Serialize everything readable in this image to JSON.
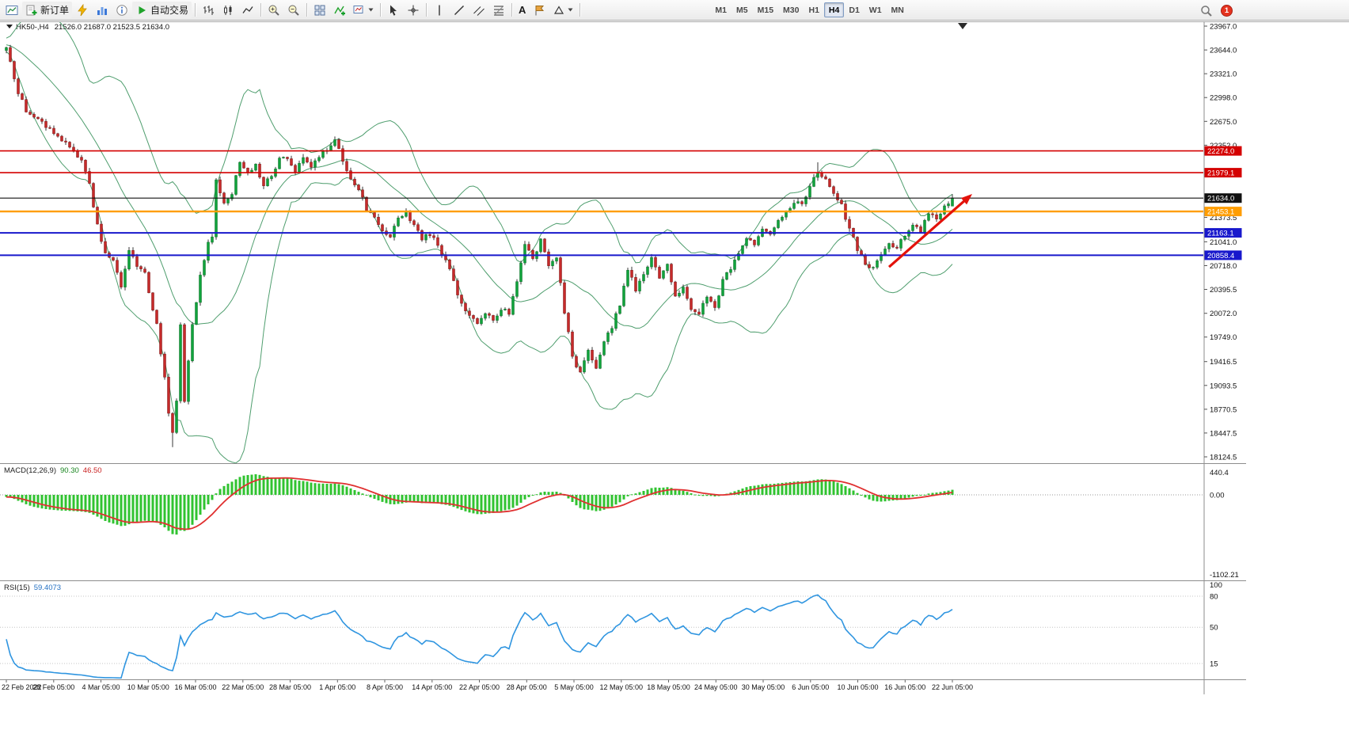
{
  "toolbar": {
    "new_order_label": "新订单",
    "autotrading_label": "自动交易",
    "text_tool_label": "A",
    "timeframes": [
      "M1",
      "M5",
      "M15",
      "M30",
      "H1",
      "H4",
      "D1",
      "W1",
      "MN"
    ],
    "active_timeframe": "H4",
    "notification_count": "1"
  },
  "chart": {
    "symbol_period": "HK50-,H4",
    "ohlc_text": "21526.0 21687.0 21523.5 21634.0",
    "open": 21526.0,
    "high": 21687.0,
    "low": 21523.5,
    "close": 21634.0
  },
  "price_axis": {
    "ticks": [
      "23967.0",
      "23644.0",
      "23321.0",
      "22998.0",
      "22675.0",
      "22352.0",
      "21373.5",
      "21041.0",
      "20718.0",
      "20395.5",
      "20072.0",
      "19749.0",
      "19416.5",
      "19093.5",
      "18770.5",
      "18447.5",
      "18124.5"
    ],
    "badges": [
      {
        "label": "22274.0",
        "price": 22274.0,
        "color": "#d40000",
        "line_width": 1.6
      },
      {
        "label": "21979.1",
        "price": 21979.1,
        "color": "#d40000",
        "line_width": 1.6
      },
      {
        "label": "21634.0",
        "price": 21634.0,
        "color": "#111111",
        "line_width": 1.2
      },
      {
        "label": "21453.1",
        "price": 21453.1,
        "color": "#ff9d00",
        "line_width": 2.4
      },
      {
        "label": "21163.1",
        "price": 21163.1,
        "color": "#1818cc",
        "line_width": 2
      },
      {
        "label": "20858.4",
        "price": 20858.4,
        "color": "#1818cc",
        "line_width": 2
      }
    ]
  },
  "indicators": {
    "macd": {
      "label": "MACD(12,26,9)",
      "value": "90.30",
      "signal": "46.50",
      "axis_labels": [
        "440.4",
        "0.00",
        "-1102.21"
      ]
    },
    "rsi": {
      "label": "RSI(15)",
      "value": "59.4073",
      "axis_labels": [
        "100",
        "80",
        "50",
        "15"
      ],
      "level_values": [
        80,
        50,
        15
      ]
    }
  },
  "time_axis": {
    "labels": [
      "22 Feb 2022",
      "28 Feb 05:00",
      "4 Mar 05:00",
      "10 Mar 05:00",
      "16 Mar 05:00",
      "22 Mar 05:00",
      "28 Mar 05:00",
      "1 Apr 05:00",
      "8 Apr 05:00",
      "14 Apr 05:00",
      "22 Apr 05:00",
      "28 Apr 05:00",
      "5 May 05:00",
      "12 May 05:00",
      "18 May 05:00",
      "24 May 05:00",
      "30 May 05:00",
      "6 Jun 05:00",
      "10 Jun 05:00",
      "16 Jun 05:00",
      "22 Jun 05:00"
    ]
  },
  "chart_data": {
    "type": "candlestick",
    "symbol": "HK50",
    "timeframe": "H4",
    "bars_total": 240,
    "last_close": 21634.0,
    "price_range": {
      "top": 23967.0,
      "bottom": 18124.5
    },
    "overlays": [
      "BollingerBands(20,2)"
    ],
    "close_anchors": [
      [
        0,
        23650
      ],
      [
        3,
        23080
      ],
      [
        5,
        22800
      ],
      [
        8,
        22700
      ],
      [
        10,
        22600
      ],
      [
        13,
        22500
      ],
      [
        16,
        22330
      ],
      [
        19,
        22150
      ],
      [
        21,
        21830
      ],
      [
        23,
        21250
      ],
      [
        25,
        20900
      ],
      [
        27,
        20800
      ],
      [
        29,
        20400
      ],
      [
        31,
        20950
      ],
      [
        33,
        20700
      ],
      [
        35,
        20600
      ],
      [
        38,
        19900
      ],
      [
        40,
        19200
      ],
      [
        41,
        18700
      ],
      [
        42,
        18450
      ],
      [
        43,
        18900
      ],
      [
        44,
        19950
      ],
      [
        45,
        18900
      ],
      [
        46,
        19400
      ],
      [
        47,
        19900
      ],
      [
        49,
        20600
      ],
      [
        51,
        21050
      ],
      [
        52,
        21100
      ],
      [
        53,
        21870
      ],
      [
        55,
        21550
      ],
      [
        57,
        21700
      ],
      [
        59,
        22150
      ],
      [
        61,
        21950
      ],
      [
        63,
        22100
      ],
      [
        65,
        21800
      ],
      [
        67,
        21950
      ],
      [
        69,
        22150
      ],
      [
        71,
        22200
      ],
      [
        73,
        22000
      ],
      [
        75,
        22150
      ],
      [
        77,
        22050
      ],
      [
        79,
        22200
      ],
      [
        81,
        22300
      ],
      [
        83,
        22420
      ],
      [
        85,
        22150
      ],
      [
        87,
        21900
      ],
      [
        89,
        21750
      ],
      [
        91,
        21500
      ],
      [
        93,
        21400
      ],
      [
        95,
        21200
      ],
      [
        97,
        21100
      ],
      [
        99,
        21350
      ],
      [
        101,
        21450
      ],
      [
        103,
        21250
      ],
      [
        105,
        21100
      ],
      [
        107,
        21150
      ],
      [
        109,
        21000
      ],
      [
        111,
        20800
      ],
      [
        113,
        20500
      ],
      [
        115,
        20200
      ],
      [
        117,
        20050
      ],
      [
        119,
        19900
      ],
      [
        121,
        20100
      ],
      [
        123,
        19950
      ],
      [
        125,
        20150
      ],
      [
        127,
        20050
      ],
      [
        129,
        20500
      ],
      [
        131,
        21000
      ],
      [
        133,
        20800
      ],
      [
        135,
        21050
      ],
      [
        137,
        20700
      ],
      [
        139,
        20850
      ],
      [
        141,
        20100
      ],
      [
        143,
        19500
      ],
      [
        145,
        19250
      ],
      [
        147,
        19550
      ],
      [
        149,
        19350
      ],
      [
        151,
        19700
      ],
      [
        153,
        19900
      ],
      [
        155,
        20200
      ],
      [
        157,
        20650
      ],
      [
        159,
        20400
      ],
      [
        161,
        20600
      ],
      [
        163,
        20850
      ],
      [
        165,
        20550
      ],
      [
        167,
        20750
      ],
      [
        169,
        20300
      ],
      [
        171,
        20450
      ],
      [
        173,
        20150
      ],
      [
        175,
        20050
      ],
      [
        177,
        20300
      ],
      [
        179,
        20150
      ],
      [
        181,
        20500
      ],
      [
        183,
        20700
      ],
      [
        185,
        20900
      ],
      [
        187,
        21100
      ],
      [
        189,
        21000
      ],
      [
        191,
        21250
      ],
      [
        193,
        21150
      ],
      [
        195,
        21300
      ],
      [
        197,
        21450
      ],
      [
        199,
        21600
      ],
      [
        201,
        21550
      ],
      [
        203,
        21800
      ],
      [
        205,
        22000
      ],
      [
        207,
        21900
      ],
      [
        209,
        21700
      ],
      [
        211,
        21550
      ],
      [
        213,
        21200
      ],
      [
        215,
        20950
      ],
      [
        217,
        20750
      ],
      [
        219,
        20680
      ],
      [
        221,
        20900
      ],
      [
        223,
        21000
      ],
      [
        225,
        20950
      ],
      [
        227,
        21150
      ],
      [
        229,
        21300
      ],
      [
        231,
        21200
      ],
      [
        233,
        21400
      ],
      [
        235,
        21350
      ],
      [
        237,
        21500
      ],
      [
        239,
        21634
      ]
    ],
    "wick_spikes": [
      {
        "bar": 42,
        "low": 18255
      },
      {
        "bar": 83,
        "high": 22470
      },
      {
        "bar": 205,
        "high": 22120
      }
    ],
    "trend_arrow": {
      "from_bar": 223,
      "from_price": 20700,
      "to_bar": 244,
      "to_price": 21690,
      "color": "#e3120b"
    }
  },
  "colors": {
    "bull": "#10a33c",
    "bear": "#c62a2a",
    "wick": "#222222",
    "bollinger": "#4f9e6e",
    "macd_histogram": "#30c330",
    "macd_signal": "#e03030",
    "rsi_line": "#2f95e0"
  }
}
